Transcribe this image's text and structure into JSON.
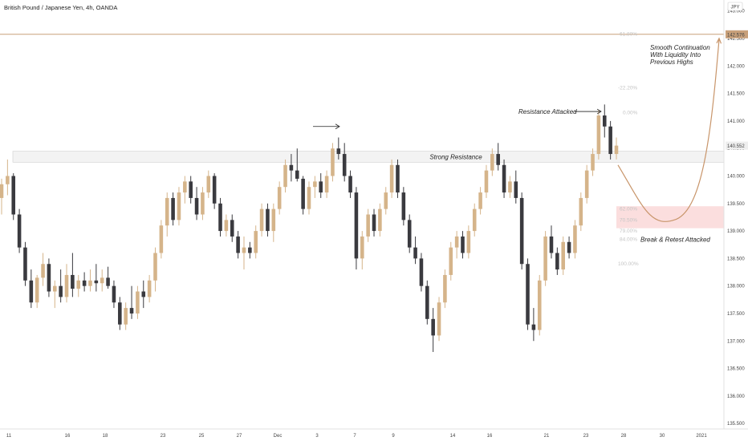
{
  "chart_title": "British Pound / Japanese Yen, 4h, OANDA",
  "currency_badge": "JPY",
  "colors": {
    "up": "#d5b48a",
    "down": "#3a3a3f",
    "level_line": "#c8a07a",
    "price_tag_bg": "#eeeeee",
    "target_tag_bg": "#c8a07a",
    "zone_fill": "#fbdede",
    "resistance_fill": "#f3f3f3",
    "projection": "#c8956a",
    "fib_text": "#c4c4c4"
  },
  "price_axis_labels": [
    "135.500",
    "136.000",
    "136.500",
    "137.000",
    "137.500",
    "138.000",
    "138.500",
    "139.000",
    "139.500",
    "140.000",
    "140.500",
    "141.000",
    "141.500",
    "142.000",
    "142.500",
    "143.000"
  ],
  "time_axis_labels": [
    "11",
    "16",
    "18",
    "23",
    "25",
    "27",
    "Dec",
    "3",
    "7",
    "9",
    "14",
    "16",
    "21",
    "23",
    "28",
    "30",
    "2021"
  ],
  "current_price_label": "140.552",
  "target_price_label": "142.576",
  "annotations": {
    "strong_resistance": "Strong Resistance",
    "resistance_attacked": "Resistance Attacked",
    "break_retest": "Break & Retest Attacked",
    "smooth_line1": "Smooth Continuation",
    "smooth_line2": "With Liquidity Into",
    "smooth_line3": "Previous Highs"
  },
  "fib_labels": [
    "61.80%",
    "-22.20%",
    "0.00%",
    "62.00%",
    "70.50%",
    "79.00%",
    "84.00%",
    "100.00%"
  ],
  "chart_data": {
    "type": "candlestick",
    "title": "British Pound / Japanese Yen, 4h, OANDA",
    "y_unit": "JPY",
    "ylim": [
      135.4,
      143.2
    ],
    "grid": false,
    "key_levels": {
      "resistance_zone": [
        140.25,
        140.45
      ],
      "target_level": 142.576,
      "current_price": 140.552,
      "retest_zone": [
        139.05,
        139.45
      ]
    },
    "fib_levels": [
      {
        "label": "61.80%",
        "price": 142.58
      },
      {
        "label": "-22.20%",
        "price": 141.6
      },
      {
        "label": "0.00%",
        "price": 141.15
      },
      {
        "label": "62.00%",
        "price": 139.4
      },
      {
        "label": "70.50%",
        "price": 139.2
      },
      {
        "label": "79.00%",
        "price": 139.0
      },
      {
        "label": "84.00%",
        "price": 138.85
      },
      {
        "label": "100.00%",
        "price": 138.4
      }
    ],
    "projection_path": [
      {
        "date": "Dec 25",
        "price": 140.2
      },
      {
        "date": "Dec 29",
        "price": 139.2
      },
      {
        "date": "2021",
        "price": 142.576
      }
    ],
    "candles": [
      {
        "o": 139.6,
        "h": 139.95,
        "l": 139.3,
        "c": 139.85
      },
      {
        "o": 139.85,
        "h": 140.3,
        "l": 139.65,
        "c": 140.0
      },
      {
        "o": 140.0,
        "h": 140.05,
        "l": 139.2,
        "c": 139.3
      },
      {
        "o": 139.3,
        "h": 139.4,
        "l": 138.6,
        "c": 138.7
      },
      {
        "o": 138.7,
        "h": 138.8,
        "l": 138.0,
        "c": 138.1
      },
      {
        "o": 138.1,
        "h": 138.3,
        "l": 137.6,
        "c": 137.7
      },
      {
        "o": 137.7,
        "h": 138.2,
        "l": 137.6,
        "c": 138.15
      },
      {
        "o": 138.15,
        "h": 138.6,
        "l": 138.0,
        "c": 138.4
      },
      {
        "o": 138.4,
        "h": 138.5,
        "l": 137.8,
        "c": 137.9
      },
      {
        "o": 137.9,
        "h": 138.1,
        "l": 137.6,
        "c": 138.0
      },
      {
        "o": 138.0,
        "h": 138.3,
        "l": 137.7,
        "c": 137.8
      },
      {
        "o": 137.8,
        "h": 138.4,
        "l": 137.7,
        "c": 138.2
      },
      {
        "o": 138.2,
        "h": 138.6,
        "l": 137.8,
        "c": 137.95
      },
      {
        "o": 137.95,
        "h": 138.2,
        "l": 137.8,
        "c": 138.1
      },
      {
        "o": 138.1,
        "h": 138.25,
        "l": 137.9,
        "c": 138.0
      },
      {
        "o": 138.0,
        "h": 138.3,
        "l": 137.9,
        "c": 138.1
      },
      {
        "o": 138.1,
        "h": 138.4,
        "l": 137.9,
        "c": 138.05
      },
      {
        "o": 138.05,
        "h": 138.3,
        "l": 137.9,
        "c": 138.15
      },
      {
        "o": 138.15,
        "h": 138.35,
        "l": 137.95,
        "c": 138.0
      },
      {
        "o": 138.0,
        "h": 138.1,
        "l": 137.6,
        "c": 137.7
      },
      {
        "o": 137.7,
        "h": 137.8,
        "l": 137.2,
        "c": 137.3
      },
      {
        "o": 137.3,
        "h": 137.7,
        "l": 137.2,
        "c": 137.6
      },
      {
        "o": 137.6,
        "h": 138.0,
        "l": 137.4,
        "c": 137.5
      },
      {
        "o": 137.5,
        "h": 138.0,
        "l": 137.4,
        "c": 137.9
      },
      {
        "o": 137.9,
        "h": 138.1,
        "l": 137.6,
        "c": 137.8
      },
      {
        "o": 137.8,
        "h": 138.2,
        "l": 137.7,
        "c": 138.1
      },
      {
        "o": 138.1,
        "h": 138.7,
        "l": 137.9,
        "c": 138.6
      },
      {
        "o": 138.6,
        "h": 139.2,
        "l": 138.5,
        "c": 139.1
      },
      {
        "o": 139.1,
        "h": 139.7,
        "l": 138.9,
        "c": 139.6
      },
      {
        "o": 139.6,
        "h": 139.7,
        "l": 139.1,
        "c": 139.2
      },
      {
        "o": 139.2,
        "h": 139.8,
        "l": 139.1,
        "c": 139.7
      },
      {
        "o": 139.7,
        "h": 140.0,
        "l": 139.5,
        "c": 139.9
      },
      {
        "o": 139.9,
        "h": 140.0,
        "l": 139.5,
        "c": 139.6
      },
      {
        "o": 139.6,
        "h": 139.8,
        "l": 139.2,
        "c": 139.3
      },
      {
        "o": 139.3,
        "h": 139.8,
        "l": 139.2,
        "c": 139.7
      },
      {
        "o": 139.7,
        "h": 140.1,
        "l": 139.6,
        "c": 140.0
      },
      {
        "o": 140.0,
        "h": 140.05,
        "l": 139.4,
        "c": 139.5
      },
      {
        "o": 139.5,
        "h": 139.6,
        "l": 138.9,
        "c": 139.0
      },
      {
        "o": 139.0,
        "h": 139.3,
        "l": 138.9,
        "c": 139.2
      },
      {
        "o": 139.2,
        "h": 139.3,
        "l": 138.8,
        "c": 138.9
      },
      {
        "o": 138.9,
        "h": 139.0,
        "l": 138.5,
        "c": 138.6
      },
      {
        "o": 138.6,
        "h": 138.9,
        "l": 138.3,
        "c": 138.7
      },
      {
        "o": 138.7,
        "h": 138.8,
        "l": 138.5,
        "c": 138.6
      },
      {
        "o": 138.6,
        "h": 139.1,
        "l": 138.5,
        "c": 139.0
      },
      {
        "o": 139.0,
        "h": 139.5,
        "l": 138.9,
        "c": 139.4
      },
      {
        "o": 139.4,
        "h": 139.5,
        "l": 138.9,
        "c": 139.0
      },
      {
        "o": 139.0,
        "h": 139.5,
        "l": 138.8,
        "c": 139.4
      },
      {
        "o": 139.4,
        "h": 139.9,
        "l": 139.3,
        "c": 139.8
      },
      {
        "o": 139.8,
        "h": 140.3,
        "l": 139.7,
        "c": 140.2
      },
      {
        "o": 140.2,
        "h": 140.4,
        "l": 139.9,
        "c": 140.1
      },
      {
        "o": 140.1,
        "h": 140.5,
        "l": 139.9,
        "c": 139.95
      },
      {
        "o": 139.95,
        "h": 140.0,
        "l": 139.3,
        "c": 139.4
      },
      {
        "o": 139.4,
        "h": 139.9,
        "l": 139.3,
        "c": 139.8
      },
      {
        "o": 139.8,
        "h": 140.0,
        "l": 139.6,
        "c": 139.9
      },
      {
        "o": 139.9,
        "h": 140.05,
        "l": 139.6,
        "c": 139.7
      },
      {
        "o": 139.7,
        "h": 140.1,
        "l": 139.6,
        "c": 140.0
      },
      {
        "o": 140.0,
        "h": 140.6,
        "l": 139.9,
        "c": 140.5
      },
      {
        "o": 140.5,
        "h": 140.7,
        "l": 140.3,
        "c": 140.4
      },
      {
        "o": 140.4,
        "h": 140.6,
        "l": 139.9,
        "c": 140.0
      },
      {
        "o": 140.0,
        "h": 140.1,
        "l": 139.6,
        "c": 139.7
      },
      {
        "o": 139.7,
        "h": 139.8,
        "l": 138.3,
        "c": 138.5
      },
      {
        "o": 138.5,
        "h": 139.0,
        "l": 138.3,
        "c": 138.9
      },
      {
        "o": 138.9,
        "h": 139.4,
        "l": 138.8,
        "c": 139.3
      },
      {
        "o": 139.3,
        "h": 139.4,
        "l": 138.9,
        "c": 139.0
      },
      {
        "o": 139.0,
        "h": 139.5,
        "l": 138.9,
        "c": 139.4
      },
      {
        "o": 139.4,
        "h": 139.8,
        "l": 139.3,
        "c": 139.7
      },
      {
        "o": 139.7,
        "h": 140.3,
        "l": 139.6,
        "c": 140.2
      },
      {
        "o": 140.2,
        "h": 140.3,
        "l": 139.6,
        "c": 139.7
      },
      {
        "o": 139.7,
        "h": 139.8,
        "l": 139.1,
        "c": 139.2
      },
      {
        "o": 139.2,
        "h": 139.3,
        "l": 138.6,
        "c": 138.7
      },
      {
        "o": 138.7,
        "h": 138.9,
        "l": 138.4,
        "c": 138.5
      },
      {
        "o": 138.5,
        "h": 138.6,
        "l": 137.9,
        "c": 138.0
      },
      {
        "o": 138.0,
        "h": 138.1,
        "l": 137.3,
        "c": 137.4
      },
      {
        "o": 137.4,
        "h": 137.6,
        "l": 136.8,
        "c": 137.1
      },
      {
        "o": 137.1,
        "h": 137.8,
        "l": 137.0,
        "c": 137.7
      },
      {
        "o": 137.7,
        "h": 138.3,
        "l": 137.6,
        "c": 138.2
      },
      {
        "o": 138.2,
        "h": 138.8,
        "l": 138.1,
        "c": 138.7
      },
      {
        "o": 138.7,
        "h": 139.0,
        "l": 138.5,
        "c": 138.9
      },
      {
        "o": 138.9,
        "h": 139.0,
        "l": 138.5,
        "c": 138.6
      },
      {
        "o": 138.6,
        "h": 139.1,
        "l": 138.5,
        "c": 139.0
      },
      {
        "o": 139.0,
        "h": 139.5,
        "l": 138.9,
        "c": 139.4
      },
      {
        "o": 139.4,
        "h": 139.8,
        "l": 139.3,
        "c": 139.7
      },
      {
        "o": 139.7,
        "h": 140.2,
        "l": 139.6,
        "c": 140.1
      },
      {
        "o": 140.1,
        "h": 140.5,
        "l": 140.0,
        "c": 140.4
      },
      {
        "o": 140.4,
        "h": 140.6,
        "l": 140.1,
        "c": 140.2
      },
      {
        "o": 140.2,
        "h": 140.3,
        "l": 139.6,
        "c": 139.7
      },
      {
        "o": 139.7,
        "h": 140.0,
        "l": 139.6,
        "c": 139.9
      },
      {
        "o": 139.9,
        "h": 140.1,
        "l": 139.5,
        "c": 139.6
      },
      {
        "o": 139.6,
        "h": 139.7,
        "l": 138.3,
        "c": 138.4
      },
      {
        "o": 138.4,
        "h": 138.5,
        "l": 137.2,
        "c": 137.3
      },
      {
        "o": 137.3,
        "h": 137.6,
        "l": 137.0,
        "c": 137.2
      },
      {
        "o": 137.2,
        "h": 138.2,
        "l": 137.1,
        "c": 138.1
      },
      {
        "o": 138.1,
        "h": 139.0,
        "l": 138.0,
        "c": 138.9
      },
      {
        "o": 138.9,
        "h": 139.1,
        "l": 138.5,
        "c": 138.6
      },
      {
        "o": 138.6,
        "h": 138.7,
        "l": 138.2,
        "c": 138.3
      },
      {
        "o": 138.3,
        "h": 138.9,
        "l": 138.2,
        "c": 138.8
      },
      {
        "o": 138.8,
        "h": 138.9,
        "l": 138.5,
        "c": 138.6
      },
      {
        "o": 138.6,
        "h": 139.2,
        "l": 138.5,
        "c": 139.1
      },
      {
        "o": 139.1,
        "h": 139.7,
        "l": 139.0,
        "c": 139.6
      },
      {
        "o": 139.6,
        "h": 140.2,
        "l": 139.5,
        "c": 140.1
      },
      {
        "o": 140.1,
        "h": 140.5,
        "l": 140.0,
        "c": 140.4
      },
      {
        "o": 140.4,
        "h": 141.2,
        "l": 140.3,
        "c": 141.1
      },
      {
        "o": 141.1,
        "h": 141.3,
        "l": 140.7,
        "c": 140.9
      },
      {
        "o": 140.9,
        "h": 141.0,
        "l": 140.3,
        "c": 140.4
      },
      {
        "o": 140.4,
        "h": 140.7,
        "l": 140.3,
        "c": 140.552
      }
    ]
  }
}
